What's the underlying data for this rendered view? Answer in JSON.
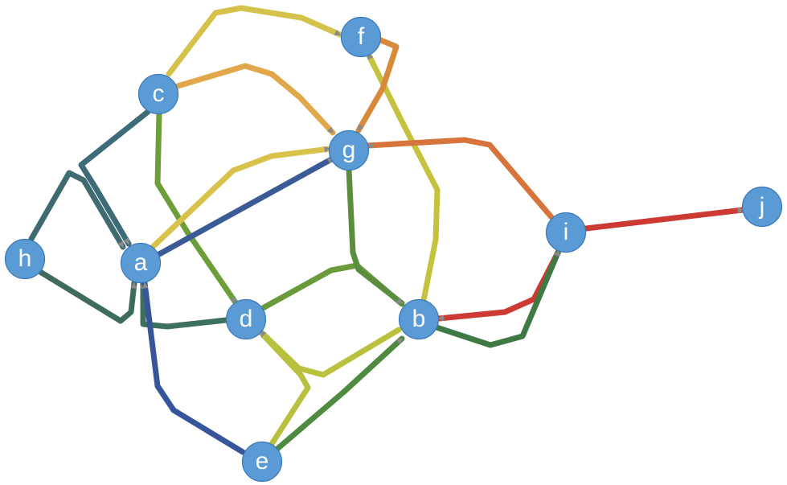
{
  "graph": {
    "nodes": [
      {
        "id": "a",
        "label": "a"
      },
      {
        "id": "b",
        "label": "b"
      },
      {
        "id": "c",
        "label": "c"
      },
      {
        "id": "d",
        "label": "d"
      },
      {
        "id": "e",
        "label": "e"
      },
      {
        "id": "f",
        "label": "f"
      },
      {
        "id": "g",
        "label": "g"
      },
      {
        "id": "h",
        "label": "h"
      },
      {
        "id": "i",
        "label": "i"
      },
      {
        "id": "j",
        "label": "j"
      }
    ],
    "edges": [
      {
        "source": "c",
        "target": "f",
        "color": "#d4c24a"
      },
      {
        "source": "c",
        "target": "g",
        "color": "#e0a84a"
      },
      {
        "source": "c",
        "target": "a",
        "color": "#3e6b78"
      },
      {
        "source": "c",
        "target": "d",
        "color": "#6e9e3a"
      },
      {
        "source": "h",
        "target": "a",
        "color": "#3f6b70"
      },
      {
        "source": "h",
        "target": "a",
        "color": "#3f6b5e"
      },
      {
        "source": "a",
        "target": "g",
        "color": "#d8c24c"
      },
      {
        "source": "a",
        "target": "g",
        "color": "#3b5b96"
      },
      {
        "source": "d",
        "target": "a",
        "color": "#3e7060"
      },
      {
        "source": "e",
        "target": "a",
        "color": "#37559a"
      },
      {
        "source": "e",
        "target": "d",
        "color": "#b8c03e"
      },
      {
        "source": "e",
        "target": "b",
        "color": "#4e8a40"
      },
      {
        "source": "d",
        "target": "b",
        "color": "#6a9a3c"
      },
      {
        "source": "b",
        "target": "d",
        "color": "#b9c23e"
      },
      {
        "source": "g",
        "target": "b",
        "color": "#5a8e3c"
      },
      {
        "source": "b",
        "target": "f",
        "color": "#c5c23e"
      },
      {
        "source": "f",
        "target": "g",
        "color": "#d88a3a"
      },
      {
        "source": "i",
        "target": "g",
        "color": "#d6743c"
      },
      {
        "source": "i",
        "target": "b",
        "color": "#cc3a33"
      },
      {
        "source": "b",
        "target": "i",
        "color": "#3f7a44"
      },
      {
        "source": "i",
        "target": "j",
        "color": "#cc3a33"
      }
    ],
    "style": {
      "node_fill": "#5b9bd5",
      "node_stroke": "#3b78b8",
      "label_color": "#ffffff",
      "arrow_color": "#8a8a8a"
    }
  }
}
